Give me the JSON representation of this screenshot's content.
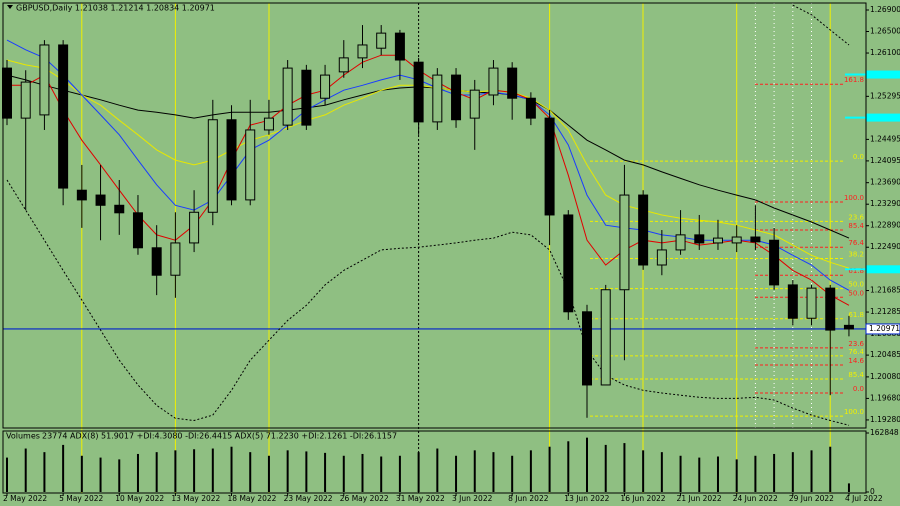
{
  "chart_data": {
    "type": "candlestick",
    "title": "GBPUSD,Daily  1.21038 1.21214 1.20834 1.20971",
    "categories": [
      "2 May 2022",
      null,
      null,
      "5 May 2022",
      null,
      null,
      "10 May 2022",
      null,
      null,
      "13 May 2022",
      null,
      null,
      "18 May 2022",
      null,
      null,
      "23 May 2022",
      null,
      null,
      "26 May 2022",
      null,
      null,
      "31 May 2022",
      null,
      null,
      "3 Jun 2022",
      null,
      null,
      "8 Jun 2022",
      null,
      null,
      "13 Jun 2022",
      null,
      null,
      "16 Jun 2022",
      null,
      null,
      "21 Jun 2022",
      null,
      null,
      "24 Jun 2022",
      null,
      null,
      "29 Jun 2022",
      null,
      null,
      "4 Jul 2022"
    ],
    "open": [
      1.2582,
      1.2489,
      1.2495,
      1.2625,
      1.2355,
      1.2346,
      1.2327,
      1.2313,
      1.2248,
      1.2197,
      1.2257,
      1.2314,
      1.2486,
      1.2337,
      1.2467,
      1.2476,
      1.2578,
      1.2526,
      1.2575,
      1.2601,
      1.2619,
      1.2647,
      1.2593,
      1.2482,
      1.2569,
      1.2489,
      1.2532,
      1.2582,
      1.2526,
      1.2489,
      1.2309,
      1.2129,
      1.1993,
      1.217,
      1.2346,
      1.2216,
      1.2244,
      1.2272,
      1.2257,
      1.2257,
      1.2268,
      1.2262,
      1.2179,
      1.2117,
      1.2173,
      1.21038
    ],
    "high": [
      1.2597,
      1.2578,
      1.2634,
      1.2634,
      1.2402,
      1.2402,
      1.2374,
      1.2346,
      1.229,
      1.2314,
      1.2355,
      1.2523,
      1.2513,
      1.2523,
      1.2523,
      1.2597,
      1.2588,
      1.2588,
      1.2634,
      1.2662,
      1.2662,
      1.2653,
      1.2601,
      1.2582,
      1.2582,
      1.256,
      1.2597,
      1.2593,
      1.2537,
      1.2504,
      1.2318,
      1.2142,
      1.2179,
      1.2402,
      1.2355,
      1.2281,
      1.2318,
      1.2309,
      1.23,
      1.229,
      1.2327,
      1.2285,
      1.2188,
      1.2179,
      1.2179,
      1.21214
    ],
    "low": [
      1.2476,
      1.2318,
      1.2467,
      1.2327,
      1.2285,
      1.2262,
      1.2272,
      1.2235,
      1.216,
      1.2155,
      1.224,
      1.229,
      1.2327,
      1.2327,
      1.2458,
      1.2467,
      1.2467,
      1.2513,
      1.2564,
      1.2582,
      1.2606,
      1.256,
      1.2458,
      1.2467,
      1.2471,
      1.243,
      1.2513,
      1.2486,
      1.2476,
      1.2253,
      1.2114,
      1.1932,
      1.1993,
      1.2039,
      1.2207,
      1.2197,
      1.2235,
      1.2244,
      1.2244,
      1.224,
      1.2244,
      1.217,
      1.2104,
      1.2104,
      1.1974,
      1.20834
    ],
    "close": [
      1.2489,
      1.2556,
      1.2625,
      1.2359,
      1.2337,
      1.2327,
      1.2313,
      1.2248,
      1.2197,
      1.2257,
      1.2314,
      1.2486,
      1.2337,
      1.2467,
      1.2489,
      1.2582,
      1.2476,
      1.2569,
      1.2601,
      1.2625,
      1.2647,
      1.2597,
      1.2482,
      1.2569,
      1.2486,
      1.2541,
      1.2582,
      1.2526,
      1.2489,
      1.2309,
      1.2129,
      1.1993,
      1.217,
      1.2346,
      1.2216,
      1.2244,
      1.2272,
      1.2257,
      1.2266,
      1.2268,
      1.2259,
      1.2179,
      1.2117,
      1.2173,
      1.2095,
      1.20971
    ],
    "up_color": "#8fbf82",
    "down_color": "#000000",
    "ylim": [
      1.1913,
      1.2703
    ],
    "yticks": [
      {
        "value": 1.269,
        "label": "1.26900"
      },
      {
        "value": 1.265,
        "label": "1.26500"
      },
      {
        "value": 1.261,
        "label": "1.26100"
      },
      {
        "value": 1.25295,
        "label": "1.25295"
      },
      {
        "value": 1.24495,
        "label": "1.24495"
      },
      {
        "value": 1.24095,
        "label": "1.24095"
      },
      {
        "value": 1.2369,
        "label": "1.23690"
      },
      {
        "value": 1.2329,
        "label": "1.23290"
      },
      {
        "value": 1.2289,
        "label": "1.22890"
      },
      {
        "value": 1.2249,
        "label": "1.22490"
      },
      {
        "value": 1.21685,
        "label": "1.21685"
      },
      {
        "value": 1.21285,
        "label": "1.21285"
      },
      {
        "value": 1.2088,
        "label": "1.20880"
      },
      {
        "value": 1.20485,
        "label": "1.20485"
      },
      {
        "value": 1.2008,
        "label": "1.20080"
      },
      {
        "value": 1.1968,
        "label": "1.19680"
      },
      {
        "value": 1.1928,
        "label": "1.19280"
      }
    ],
    "last_price": {
      "value": 1.20971,
      "label": "1.20971",
      "color": "#0022cc"
    },
    "levels": {
      "color": "#00ffff",
      "values": [
        1.257,
        1.249,
        1.2208
      ]
    },
    "lines": [
      {
        "color": "#000000",
        "dash": false,
        "values": [
          1.2569,
          1.256,
          1.255,
          1.2541,
          1.2532,
          1.2523,
          1.2513,
          1.2504,
          1.25,
          1.2495,
          1.2489,
          1.2495,
          1.25,
          1.25,
          1.25,
          1.2504,
          1.2508,
          1.2513,
          1.2523,
          1.2532,
          1.2541,
          1.2545,
          1.2547,
          1.2545,
          1.2541,
          1.2537,
          1.2536,
          1.2532,
          1.2523,
          1.2504,
          1.2476,
          1.2448,
          1.243,
          1.2411,
          1.2402,
          1.2389,
          1.2377,
          1.2365,
          1.2355,
          1.2346,
          1.2337,
          1.2322,
          1.2309,
          1.2296,
          1.2281,
          1.2266
        ]
      },
      {
        "color": "#e8e800",
        "dash": false,
        "values": [
          1.2597,
          1.2588,
          1.2582,
          1.256,
          1.2532,
          1.2513,
          1.2485,
          1.2458,
          1.243,
          1.2411,
          1.2402,
          1.2411,
          1.243,
          1.2448,
          1.2458,
          1.2471,
          1.2485,
          1.2495,
          1.2513,
          1.2526,
          1.2541,
          1.255,
          1.255,
          1.2545,
          1.2541,
          1.2537,
          1.2541,
          1.2537,
          1.2526,
          1.2504,
          1.2467,
          1.2402,
          1.2346,
          1.2327,
          1.2318,
          1.2309,
          1.2303,
          1.2299,
          1.2296,
          1.229,
          1.2281,
          1.2272,
          1.2253,
          1.2234,
          1.2221,
          1.221
        ]
      },
      {
        "color": "#1a3cff",
        "dash": false,
        "values": [
          1.2634,
          1.2616,
          1.2601,
          1.2569,
          1.2532,
          1.2495,
          1.2458,
          1.2411,
          1.2365,
          1.2327,
          1.2318,
          1.2337,
          1.2383,
          1.243,
          1.2448,
          1.2476,
          1.2504,
          1.2523,
          1.2541,
          1.255,
          1.256,
          1.2569,
          1.256,
          1.2545,
          1.2532,
          1.2532,
          1.2537,
          1.2532,
          1.2523,
          1.2495,
          1.2439,
          1.2346,
          1.229,
          1.2285,
          1.2281,
          1.2272,
          1.2268,
          1.2262,
          1.2262,
          1.2262,
          1.2262,
          1.2253,
          1.2234,
          1.2216,
          1.2188,
          1.2169
        ]
      },
      {
        "color": "#e00000",
        "dash": false,
        "values": [
          1.255,
          1.255,
          1.2569,
          1.2504,
          1.2448,
          1.2402,
          1.2355,
          1.2309,
          1.2272,
          1.2262,
          1.229,
          1.2337,
          1.2411,
          1.2476,
          1.2485,
          1.2513,
          1.2532,
          1.2541,
          1.2569,
          1.2593,
          1.2606,
          1.2606,
          1.2578,
          1.2556,
          1.2537,
          1.2523,
          1.2541,
          1.2537,
          1.2523,
          1.2489,
          1.2383,
          1.2262,
          1.2216,
          1.2244,
          1.2262,
          1.2257,
          1.2262,
          1.2253,
          1.2257,
          1.2262,
          1.2257,
          1.2234,
          1.2206,
          1.2188,
          1.216,
          1.2141
        ]
      },
      {
        "color": "#000000",
        "dash": true,
        "values": [
          1.2374,
          1.2318,
          1.2262,
          1.2206,
          1.2151,
          1.2095,
          1.2039,
          1.1993,
          1.1955,
          1.1931,
          1.1927,
          1.1937,
          1.1983,
          1.2039,
          1.2076,
          1.2113,
          1.2141,
          1.2179,
          1.2206,
          1.2225,
          1.2244,
          1.2247,
          1.2249,
          1.2253,
          1.2257,
          1.2262,
          1.2266,
          1.2277,
          1.2272,
          1.2244,
          1.2169,
          1.2058,
          1.2011,
          1.1993,
          1.1983,
          1.1978,
          1.1974,
          1.197,
          1.1968,
          1.1968,
          1.197,
          1.1965,
          1.195,
          1.1937,
          1.1927,
          1.1918
        ]
      },
      {
        "color": "#000000",
        "dash": true,
        "values": [
          null,
          null,
          null,
          null,
          null,
          null,
          null,
          null,
          null,
          null,
          null,
          null,
          null,
          null,
          null,
          null,
          null,
          null,
          null,
          null,
          null,
          null,
          null,
          null,
          null,
          null,
          null,
          null,
          null,
          null,
          null,
          null,
          null,
          null,
          null,
          null,
          null,
          null,
          null,
          null,
          null,
          null,
          1.2699,
          1.2681,
          1.2653,
          1.2625
        ]
      }
    ],
    "fibs": [
      {
        "color": "#ff2020",
        "levels": [
          {
            "value": 1.2552,
            "label": "161.8"
          },
          {
            "value": 1.2333,
            "label": "100.0"
          },
          {
            "value": 1.2281,
            "label": "85.4"
          },
          {
            "value": 1.2249,
            "label": "76.4"
          },
          {
            "value": 1.2197,
            "label": "61.8"
          },
          {
            "value": 1.2156,
            "label": "50.0"
          },
          {
            "value": 1.2062,
            "label": "23.6"
          },
          {
            "value": 1.203,
            "label": "14.6"
          },
          {
            "value": 1.1978,
            "label": "0.0"
          }
        ]
      },
      {
        "color": "#f0f000",
        "levels": [
          {
            "value": 1.2409,
            "label": "0.0"
          },
          {
            "value": 1.2297,
            "label": "23.6"
          },
          {
            "value": 1.2228,
            "label": "38.2"
          },
          {
            "value": 1.2172,
            "label": "50.0"
          },
          {
            "value": 1.2116,
            "label": "61.8"
          },
          {
            "value": 1.2047,
            "label": "76.4"
          },
          {
            "value": 1.2004,
            "label": "85.4"
          },
          {
            "value": 1.1935,
            "label": "100.0"
          }
        ]
      }
    ],
    "volume": {
      "label": "Volumes",
      "indicator_text": "ADX(8) 51.9017 +DI:4.3080 -DI:26.4415  ADX(5) 71.2230 +DI:2.1261 -DI:26.1157",
      "color": "#000000",
      "values": [
        95000,
        120000,
        110000,
        130000,
        100000,
        95000,
        90000,
        105000,
        110000,
        115000,
        118000,
        120000,
        125000,
        110000,
        100000,
        115000,
        112000,
        108000,
        100000,
        105000,
        98000,
        100000,
        110000,
        120000,
        100000,
        115000,
        110000,
        100000,
        115000,
        125000,
        140000,
        150000,
        130000,
        135000,
        115000,
        110000,
        100000,
        95000,
        98000,
        90000,
        100000,
        105000,
        110000,
        115000,
        125000,
        23774
      ],
      "ylim": [
        0,
        162848
      ],
      "yticks": [
        0,
        162848
      ]
    }
  }
}
